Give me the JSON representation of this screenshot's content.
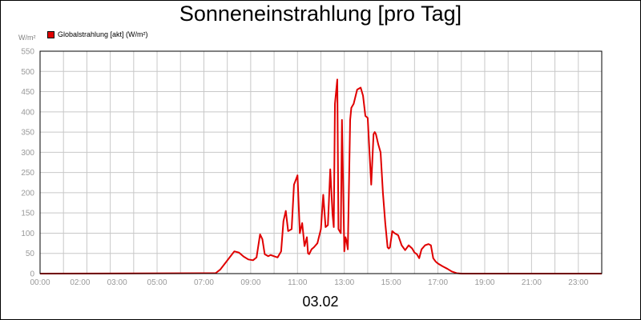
{
  "chart_data": {
    "type": "line",
    "title": "Sonneneinstrahlung [pro Tag]",
    "unit_label": "W/m²",
    "date_label": "03.02",
    "legend_placement": "top-left",
    "grid": true,
    "ylim": [
      0,
      550
    ],
    "y_ticks": [
      0,
      50,
      100,
      150,
      200,
      250,
      300,
      350,
      400,
      450,
      500,
      550
    ],
    "xlim": [
      0,
      24
    ],
    "x_ticks": [
      {
        "x": 0,
        "label": "00:00"
      },
      {
        "x": 2,
        "label": "02:00"
      },
      {
        "x": 3,
        "label": "03:00"
      },
      {
        "x": 5,
        "label": "05:00"
      },
      {
        "x": 7,
        "label": "07:00"
      },
      {
        "x": 9,
        "label": "09:00"
      },
      {
        "x": 11,
        "label": "11:00"
      },
      {
        "x": 13,
        "label": "13:00"
      },
      {
        "x": 15,
        "label": "15:00"
      },
      {
        "x": 17,
        "label": "17:00"
      },
      {
        "x": 19,
        "label": "19:00"
      },
      {
        "x": 21,
        "label": "21:00"
      },
      {
        "x": 23,
        "label": "23:00"
      }
    ],
    "x_gridlines": [
      1,
      2,
      3,
      4,
      5,
      6,
      7,
      8,
      9,
      10,
      11,
      12,
      13,
      14,
      15,
      16,
      17,
      18,
      19,
      20,
      21,
      22,
      23
    ],
    "series": [
      {
        "name": "Globalstrahlung [akt] (W/m²)",
        "color": "#e00000",
        "x": [
          0,
          7.5,
          7.7,
          7.9,
          8.1,
          8.3,
          8.5,
          8.7,
          8.9,
          9.1,
          9.25,
          9.4,
          9.5,
          9.6,
          9.75,
          9.85,
          10.0,
          10.15,
          10.3,
          10.4,
          10.5,
          10.6,
          10.75,
          10.85,
          10.95,
          11.0,
          11.1,
          11.2,
          11.3,
          11.4,
          11.45,
          11.5,
          11.6,
          11.7,
          11.85,
          12.0,
          12.1,
          12.2,
          12.3,
          12.4,
          12.5,
          12.55,
          12.6,
          12.7,
          12.75,
          12.85,
          12.9,
          13.0,
          13.05,
          13.1,
          13.15,
          13.25,
          13.3,
          13.4,
          13.55,
          13.7,
          13.8,
          13.9,
          14.0,
          14.15,
          14.25,
          14.3,
          14.35,
          14.45,
          14.55,
          14.65,
          14.75,
          14.85,
          14.9,
          14.95,
          15.05,
          15.15,
          15.3,
          15.45,
          15.6,
          15.75,
          15.9,
          16.0,
          16.1,
          16.2,
          16.3,
          16.45,
          16.6,
          16.7,
          16.8,
          16.9,
          17.0,
          17.2,
          17.4,
          17.6,
          17.8,
          18.0,
          24.0
        ],
        "y": [
          0,
          1,
          10,
          25,
          40,
          55,
          52,
          42,
          35,
          33,
          40,
          97,
          85,
          48,
          43,
          46,
          43,
          40,
          55,
          130,
          155,
          105,
          110,
          220,
          235,
          243,
          100,
          125,
          68,
          90,
          50,
          48,
          60,
          65,
          75,
          110,
          195,
          115,
          120,
          258,
          145,
          115,
          420,
          480,
          110,
          100,
          380,
          55,
          90,
          80,
          60,
          380,
          410,
          420,
          455,
          460,
          440,
          390,
          385,
          220,
          345,
          350,
          345,
          320,
          300,
          200,
          125,
          65,
          62,
          65,
          105,
          100,
          95,
          70,
          58,
          70,
          62,
          52,
          48,
          38,
          60,
          70,
          73,
          70,
          38,
          30,
          25,
          18,
          12,
          5,
          1,
          0,
          0
        ]
      }
    ]
  }
}
